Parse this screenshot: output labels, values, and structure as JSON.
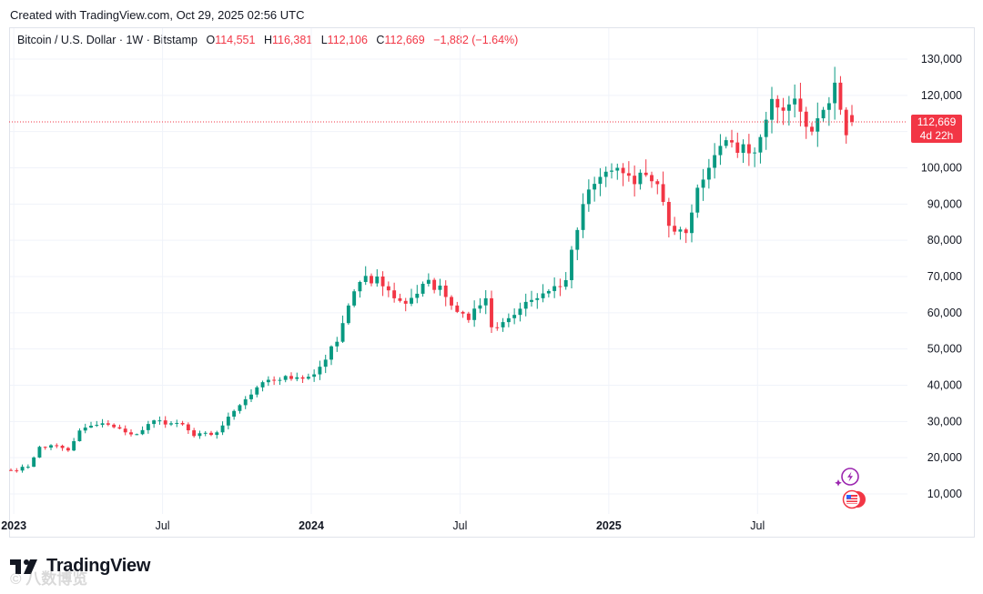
{
  "caption": "Created with TradingView.com, Oct 29, 2025 02:56 UTC",
  "legend": {
    "symbol": "Bitcoin / U.S. Dollar · 1W · Bitstamp",
    "o_label": "O",
    "o_value": "114,551",
    "h_label": "H",
    "h_value": "116,381",
    "l_label": "L",
    "l_value": "112,106",
    "c_label": "C",
    "c_value": "112,669",
    "change": "−1,882 (−1.64%)"
  },
  "price_tag": {
    "price": "112,669",
    "countdown": "4d 22h"
  },
  "logo": {
    "text": "TradingView"
  },
  "watermark": "©  八数博览",
  "colors": {
    "up": "#089981",
    "down": "#f23645",
    "grid": "#f0f3fa",
    "axis_text": "#131722"
  },
  "chart_data": {
    "type": "candlestick",
    "title": "Bitcoin / U.S. Dollar · 1W · Bitstamp",
    "ylim": [
      5000,
      135000
    ],
    "y_ticks": [
      10000,
      20000,
      30000,
      40000,
      50000,
      60000,
      70000,
      80000,
      90000,
      100000,
      110000,
      120000,
      130000
    ],
    "y_tick_labels": [
      "10,000",
      "20,000",
      "30,000",
      "40,000",
      "50,000",
      "60,000",
      "70,000",
      "80,000",
      "90,000",
      "100,000",
      "110,000",
      "120,000",
      "130,000"
    ],
    "x_range_weeks": [
      0,
      150
    ],
    "x_ticks": [
      {
        "week": 0.5,
        "label": "2023",
        "bold": true
      },
      {
        "week": 26.5,
        "label": "Jul",
        "bold": false
      },
      {
        "week": 52.5,
        "label": "2024",
        "bold": true
      },
      {
        "week": 78.5,
        "label": "Jul",
        "bold": false
      },
      {
        "week": 104.5,
        "label": "2025",
        "bold": true
      },
      {
        "week": 130.5,
        "label": "Jul",
        "bold": false
      }
    ],
    "last_price": 112669,
    "anchors": [
      [
        0,
        16500
      ],
      [
        3,
        17500
      ],
      [
        5,
        23000
      ],
      [
        8,
        23300
      ],
      [
        10,
        22000
      ],
      [
        12,
        27500
      ],
      [
        16,
        29500
      ],
      [
        20,
        27000
      ],
      [
        22,
        26500
      ],
      [
        25,
        30300
      ],
      [
        28,
        29500
      ],
      [
        30,
        29200
      ],
      [
        32,
        26000
      ],
      [
        36,
        27000
      ],
      [
        40,
        34500
      ],
      [
        45,
        41500
      ],
      [
        50,
        42200
      ],
      [
        53,
        43000
      ],
      [
        57,
        52000
      ],
      [
        59,
        62000
      ],
      [
        61,
        68500
      ],
      [
        64,
        70000
      ],
      [
        67,
        64000
      ],
      [
        69,
        62500
      ],
      [
        72,
        68000
      ],
      [
        75,
        67500
      ],
      [
        77,
        62000
      ],
      [
        80,
        58000
      ],
      [
        83,
        64000
      ],
      [
        84,
        56000
      ],
      [
        87,
        58500
      ],
      [
        90,
        63000
      ],
      [
        94,
        66000
      ],
      [
        97,
        69000
      ],
      [
        100,
        90000
      ],
      [
        103,
        97500
      ],
      [
        106,
        100000
      ],
      [
        109,
        95500
      ],
      [
        111,
        98000
      ],
      [
        113,
        95500
      ],
      [
        115,
        84000
      ],
      [
        118,
        82000
      ],
      [
        120,
        94500
      ],
      [
        123,
        103500
      ],
      [
        126,
        107000
      ],
      [
        129,
        104000
      ],
      [
        131,
        108500
      ],
      [
        133,
        119000
      ],
      [
        136,
        117500
      ],
      [
        138,
        115500
      ],
      [
        140,
        110000
      ],
      [
        142,
        116000
      ],
      [
        144,
        123500
      ],
      [
        146,
        109000
      ],
      [
        147,
        114551
      ]
    ],
    "wick_seed": 7
  }
}
